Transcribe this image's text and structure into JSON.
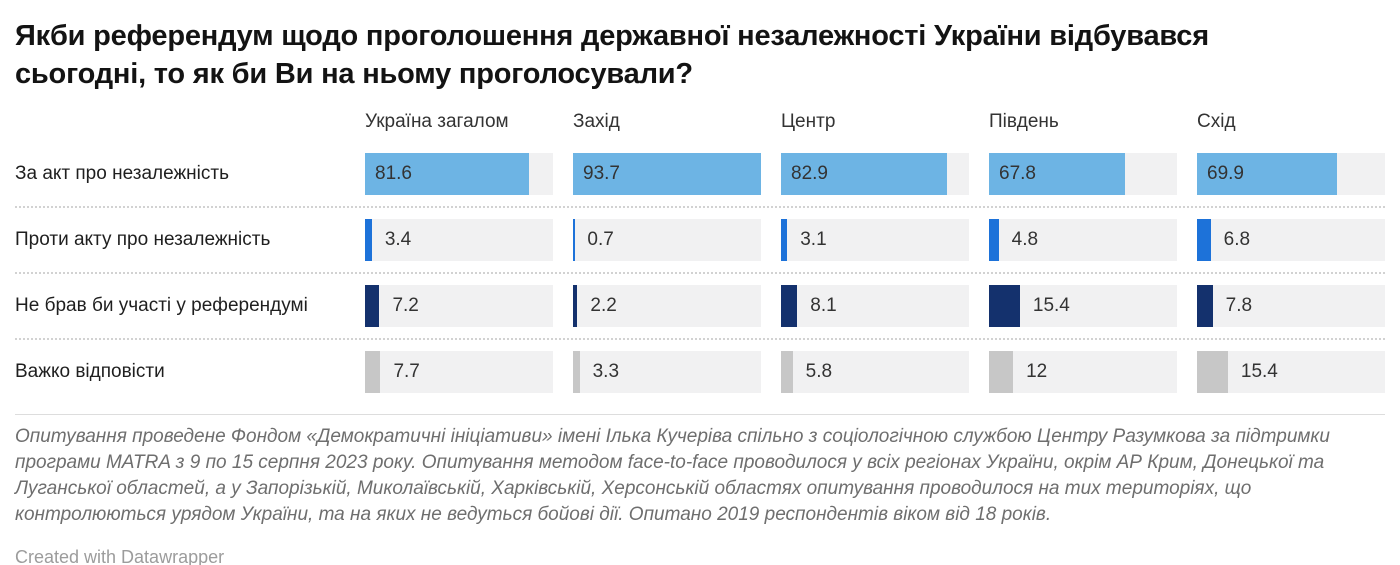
{
  "header": {
    "title": "Якби референдум щодо проголошення державної незалежності України відбувався сьогодні, то як би Ви на ньому проголосували?"
  },
  "chart_data": {
    "type": "bar",
    "title": "Якби референдум щодо проголошення державної незалежності України відбувався сьогодні, то як би Ви на ньому проголосували?",
    "categories": [
      "Україна загалом",
      "Захід",
      "Центр",
      "Південь",
      "Схід"
    ],
    "rows": [
      {
        "label": "За акт про незалежність",
        "values": [
          81.6,
          93.7,
          82.9,
          67.8,
          69.9
        ],
        "color": "#6db4e4"
      },
      {
        "label": "Проти акту про незалежність",
        "values": [
          3.4,
          0.7,
          3.1,
          4.8,
          6.8
        ],
        "color": "#1d72d9"
      },
      {
        "label": "Не брав би участі у референдумі",
        "values": [
          7.2,
          2.2,
          8.1,
          15.4,
          7.8
        ],
        "color": "#14316d"
      },
      {
        "label": "Важко відповісти",
        "values": [
          7.7,
          3.3,
          5.8,
          12,
          15.4
        ],
        "color": "#c7c7c7"
      }
    ],
    "xmax": 93.7,
    "xlim": [
      0,
      93.7
    ],
    "xlabel": "",
    "ylabel": "",
    "grid": false,
    "legend_position": "none",
    "track_color": "#f1f1f2",
    "value_label_color": "#333333"
  },
  "footer": {
    "note": "Опитування проведене Фондом «Демократичні ініціативи» імені Ілька Кучеріва спільно з соціологічною службою Центру Разумкова за підтримки програми MATRA з 9 по 15 серпня 2023 року. Опитування методом face-to-face проводилося у всіх регіонах України, окрім АР Крим, Донецької та Луганської областей, а у Запорізькій, Миколаївській, Харківській, Херсонській областях опитування проводилося на тих територіях, що контролюються урядом України, та на яких не ведуться бойові дії. Опитано 2019 респондентів віком від 18 років.",
    "attribution": "Created with Datawrapper"
  }
}
